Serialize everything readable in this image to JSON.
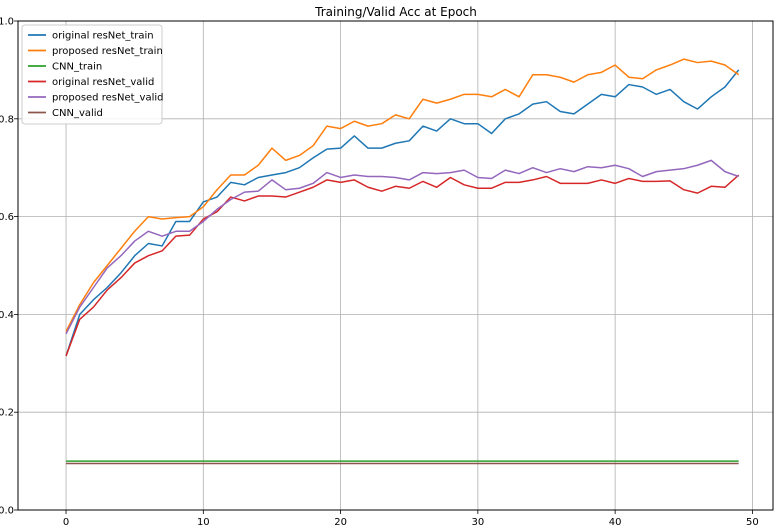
{
  "chart_data": {
    "type": "line",
    "title": "Training/Valid Acc at Epoch",
    "xlabel": "",
    "ylabel": "",
    "xlim": [
      -3.5,
      51.5
    ],
    "ylim": [
      0.0,
      1.0
    ],
    "xticks": [
      0,
      10,
      20,
      30,
      40,
      50
    ],
    "yticks": [
      0.0,
      0.2,
      0.4,
      0.6,
      0.8,
      1.0
    ],
    "xtick_labels": [
      "0",
      "10",
      "20",
      "30",
      "40",
      "50"
    ],
    "ytick_labels": [
      "0.0",
      "0.2",
      "0.4",
      "0.6",
      "0.8",
      "1.0"
    ],
    "grid": true,
    "legend_position": "top-left",
    "x": [
      0,
      1,
      2,
      3,
      4,
      5,
      6,
      7,
      8,
      9,
      10,
      11,
      12,
      13,
      14,
      15,
      16,
      17,
      18,
      19,
      20,
      21,
      22,
      23,
      24,
      25,
      26,
      27,
      28,
      29,
      30,
      31,
      32,
      33,
      34,
      35,
      36,
      37,
      38,
      39,
      40,
      41,
      42,
      43,
      44,
      45,
      46,
      47,
      48,
      49
    ],
    "series": [
      {
        "name": "original resNet_train",
        "color": "#1f77b4",
        "values": [
          0.315,
          0.4,
          0.43,
          0.455,
          0.485,
          0.52,
          0.545,
          0.54,
          0.59,
          0.59,
          0.63,
          0.64,
          0.67,
          0.665,
          0.68,
          0.685,
          0.69,
          0.7,
          0.72,
          0.738,
          0.74,
          0.765,
          0.74,
          0.74,
          0.75,
          0.755,
          0.785,
          0.775,
          0.8,
          0.79,
          0.79,
          0.77,
          0.8,
          0.81,
          0.83,
          0.835,
          0.815,
          0.81,
          0.83,
          0.85,
          0.845,
          0.87,
          0.865,
          0.85,
          0.86,
          0.835,
          0.82,
          0.845,
          0.865,
          0.9
        ]
      },
      {
        "name": "proposed resNet_train",
        "color": "#ff7f0e",
        "values": [
          0.365,
          0.42,
          0.465,
          0.5,
          0.535,
          0.57,
          0.6,
          0.595,
          0.598,
          0.6,
          0.62,
          0.655,
          0.685,
          0.685,
          0.705,
          0.74,
          0.715,
          0.725,
          0.745,
          0.785,
          0.78,
          0.795,
          0.785,
          0.79,
          0.808,
          0.8,
          0.84,
          0.832,
          0.84,
          0.85,
          0.85,
          0.845,
          0.86,
          0.845,
          0.89,
          0.89,
          0.885,
          0.875,
          0.89,
          0.895,
          0.91,
          0.885,
          0.882,
          0.9,
          0.91,
          0.922,
          0.915,
          0.918,
          0.91,
          0.89
        ]
      },
      {
        "name": "CNN_train",
        "color": "#2ca02c",
        "values": [
          0.1,
          0.1,
          0.1,
          0.1,
          0.1,
          0.1,
          0.1,
          0.1,
          0.1,
          0.1,
          0.1,
          0.1,
          0.1,
          0.1,
          0.1,
          0.1,
          0.1,
          0.1,
          0.1,
          0.1,
          0.1,
          0.1,
          0.1,
          0.1,
          0.1,
          0.1,
          0.1,
          0.1,
          0.1,
          0.1,
          0.1,
          0.1,
          0.1,
          0.1,
          0.1,
          0.1,
          0.1,
          0.1,
          0.1,
          0.1,
          0.1,
          0.1,
          0.1,
          0.1,
          0.1,
          0.1,
          0.1,
          0.1,
          0.1,
          0.1
        ]
      },
      {
        "name": "original resNet_valid",
        "color": "#d62728",
        "values": [
          0.315,
          0.39,
          0.415,
          0.45,
          0.475,
          0.505,
          0.52,
          0.53,
          0.56,
          0.562,
          0.595,
          0.61,
          0.64,
          0.632,
          0.642,
          0.642,
          0.64,
          0.65,
          0.66,
          0.675,
          0.67,
          0.675,
          0.66,
          0.652,
          0.662,
          0.658,
          0.672,
          0.66,
          0.68,
          0.665,
          0.658,
          0.658,
          0.67,
          0.67,
          0.675,
          0.682,
          0.668,
          0.668,
          0.668,
          0.675,
          0.668,
          0.678,
          0.672,
          0.672,
          0.673,
          0.655,
          0.648,
          0.662,
          0.66,
          0.685
        ]
      },
      {
        "name": "proposed resNet_valid",
        "color": "#9467bd",
        "values": [
          0.36,
          0.415,
          0.455,
          0.495,
          0.52,
          0.55,
          0.57,
          0.56,
          0.57,
          0.57,
          0.59,
          0.615,
          0.635,
          0.65,
          0.652,
          0.675,
          0.655,
          0.658,
          0.668,
          0.69,
          0.68,
          0.685,
          0.682,
          0.682,
          0.68,
          0.675,
          0.69,
          0.688,
          0.69,
          0.695,
          0.68,
          0.678,
          0.695,
          0.688,
          0.7,
          0.69,
          0.698,
          0.692,
          0.702,
          0.7,
          0.705,
          0.698,
          0.682,
          0.692,
          0.695,
          0.698,
          0.705,
          0.715,
          0.692,
          0.682
        ]
      },
      {
        "name": "CNN_valid",
        "color": "#8c564b",
        "values": [
          0.095,
          0.095,
          0.095,
          0.095,
          0.095,
          0.095,
          0.095,
          0.095,
          0.095,
          0.095,
          0.095,
          0.095,
          0.095,
          0.095,
          0.095,
          0.095,
          0.095,
          0.095,
          0.095,
          0.095,
          0.095,
          0.095,
          0.095,
          0.095,
          0.095,
          0.095,
          0.095,
          0.095,
          0.095,
          0.095,
          0.095,
          0.095,
          0.095,
          0.095,
          0.095,
          0.095,
          0.095,
          0.095,
          0.095,
          0.095,
          0.095,
          0.095,
          0.095,
          0.095,
          0.095,
          0.095,
          0.095,
          0.095,
          0.095,
          0.095
        ]
      }
    ]
  }
}
